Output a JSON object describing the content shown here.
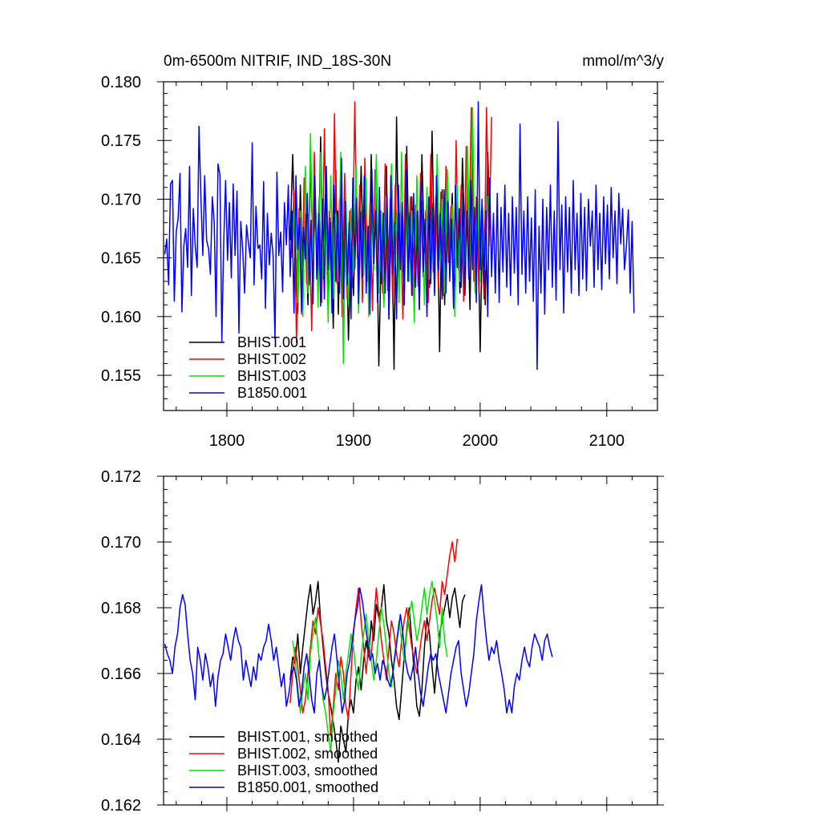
{
  "chart_data": [
    {
      "type": "line",
      "title_left": "0m-6500m NITRIF, IND_18S-30N",
      "title_right": "mmol/m^3/y",
      "xlim": [
        1750,
        2140
      ],
      "ylim": [
        0.152,
        0.18
      ],
      "x_ticks": [
        1800,
        1900,
        2000,
        2100
      ],
      "x_tick_labels": [
        "1800",
        "1900",
        "2000",
        "2100"
      ],
      "y_ticks": [
        0.155,
        0.16,
        0.165,
        0.17,
        0.175,
        0.18
      ],
      "y_tick_labels": [
        "0.155",
        "0.160",
        "0.165",
        "0.170",
        "0.175",
        "0.180"
      ],
      "legend_position": "bottom-left",
      "series": [
        {
          "name": "BHIST.001",
          "color": "#000000",
          "x_start": 1850,
          "x_step": 2,
          "values": [
            0.1665,
            0.1738,
            0.1655,
            0.1603,
            0.1712,
            0.1628,
            0.1687,
            0.161,
            0.1735,
            0.1652,
            0.1698,
            0.1625,
            0.1753,
            0.164,
            0.1715,
            0.1612,
            0.168,
            0.159,
            0.1725,
            0.1602,
            0.1705,
            0.1575,
            0.1692,
            0.158,
            0.1663,
            0.1618,
            0.1702,
            0.1628,
            0.1728,
            0.1641,
            0.1689,
            0.1618,
            0.1738,
            0.1648,
            0.17,
            0.1558,
            0.1666,
            0.1612,
            0.1728,
            0.1598,
            0.1703,
            0.1555,
            0.177,
            0.1632,
            0.1688,
            0.161,
            0.1745,
            0.1642,
            0.1702,
            0.1614,
            0.1688,
            0.1606,
            0.1738,
            0.1655,
            0.17,
            0.1625,
            0.1758,
            0.1647,
            0.171,
            0.157,
            0.1708,
            0.161,
            0.1725,
            0.165,
            0.1705,
            0.1612,
            0.1698,
            0.162,
            0.1735,
            0.166,
            0.1692,
            0.1606,
            0.1745,
            0.1622,
            0.17,
            0.157,
            0.169,
            0.161,
            0.174,
            0.1675
          ]
        },
        {
          "name": "BHIST.002",
          "color": "#ff0000",
          "x_start": 1851,
          "x_step": 2,
          "values": [
            0.165,
            0.1708,
            0.1578,
            0.1692,
            0.1602,
            0.1718,
            0.1628,
            0.1688,
            0.1588,
            0.174,
            0.1645,
            0.1702,
            0.1612,
            0.176,
            0.1636,
            0.169,
            0.162,
            0.1773,
            0.1628,
            0.17,
            0.16,
            0.1722,
            0.1615,
            0.169,
            0.1625,
            0.1783,
            0.165,
            0.1712,
            0.1612,
            0.1735,
            0.163,
            0.1698,
            0.1605,
            0.1725,
            0.164,
            0.169,
            0.162,
            0.173,
            0.1622,
            0.17,
            0.161,
            0.1712,
            0.1635,
            0.1688,
            0.1598,
            0.1738,
            0.165,
            0.1702,
            0.1618,
            0.1695,
            0.1626,
            0.1722,
            0.1634,
            0.169,
            0.1612,
            0.1738,
            0.1638,
            0.1702,
            0.1625,
            0.1706,
            0.1618,
            0.1728,
            0.1646,
            0.1694,
            0.161,
            0.175,
            0.164,
            0.1712,
            0.1613,
            0.1745,
            0.165,
            0.1778,
            0.163,
            0.1702,
            0.162,
            0.169,
            0.1615,
            0.1778,
            0.166,
            0.177
          ]
        },
        {
          "name": "BHIST.003",
          "color": "#00e600",
          "x_start": 1852,
          "x_step": 2,
          "values": [
            0.166,
            0.1705,
            0.1612,
            0.169,
            0.16,
            0.1728,
            0.162,
            0.1756,
            0.1648,
            0.1702,
            0.1608,
            0.174,
            0.1632,
            0.169,
            0.1595,
            0.172,
            0.1615,
            0.1688,
            0.163,
            0.174,
            0.156,
            0.1702,
            0.161,
            0.1692,
            0.164,
            0.1728,
            0.1603,
            0.169,
            0.1635,
            0.1718,
            0.16,
            0.1696,
            0.164,
            0.1738,
            0.162,
            0.169,
            0.1608,
            0.1702,
            0.1626,
            0.173,
            0.1642,
            0.1688,
            0.1612,
            0.174,
            0.1615,
            0.17,
            0.163,
            0.169,
            0.1595,
            0.172,
            0.164,
            0.1698,
            0.161,
            0.171,
            0.1632,
            0.1692,
            0.162,
            0.1738,
            0.1648,
            0.17,
            0.162,
            0.1725,
            0.164,
            0.1695,
            0.16,
            0.1712,
            0.163,
            0.17,
            0.162,
            0.1745,
            0.1655,
            0.1778,
            0.162,
            0.17,
            0.163,
            0.1692,
            0.164,
            0.1703
          ]
        },
        {
          "name": "B1850.001",
          "color": "#0000ff",
          "x_start": 1751,
          "x_step": 1.5,
          "values": [
            0.1653,
            0.1666,
            0.1627,
            0.1713,
            0.1716,
            0.1613,
            0.1672,
            0.1684,
            0.1722,
            0.1604,
            0.166,
            0.1675,
            0.1642,
            0.1728,
            0.1618,
            0.1692,
            0.166,
            0.1642,
            0.1762,
            0.1701,
            0.1652,
            0.172,
            0.1665,
            0.1658,
            0.1636,
            0.1702,
            0.168,
            0.16,
            0.173,
            0.1721,
            0.1579,
            0.1662,
            0.1716,
            0.1648,
            0.1697,
            0.1633,
            0.1713,
            0.1652,
            0.1707,
            0.1586,
            0.1681,
            0.1657,
            0.162,
            0.1678,
            0.1663,
            0.165,
            0.1748,
            0.1627,
            0.1694,
            0.1658,
            0.1661,
            0.1632,
            0.1715,
            0.1607,
            0.1688,
            0.1644,
            0.1671,
            0.1652,
            0.1581,
            0.1723,
            0.1652,
            0.1672,
            0.1621,
            0.1697,
            0.1661,
            0.1712,
            0.1634,
            0.169,
            0.1603,
            0.172,
            0.1657,
            0.1684,
            0.1604,
            0.1676,
            0.1649,
            0.1705,
            0.1627,
            0.1682,
            0.1611,
            0.172,
            0.1632,
            0.1688,
            0.1609,
            0.17,
            0.1615,
            0.1728,
            0.164,
            0.1684,
            0.1603,
            0.1712,
            0.163,
            0.169,
            0.162,
            0.1735,
            0.1615,
            0.1698,
            0.1627,
            0.168,
            0.1598,
            0.1718,
            0.1641,
            0.1701,
            0.1611,
            0.1689,
            0.1633,
            0.172,
            0.162,
            0.1677,
            0.1602,
            0.1725,
            0.1645,
            0.169,
            0.1612,
            0.171,
            0.1628,
            0.1688,
            0.162,
            0.1702,
            0.16,
            0.172,
            0.1636,
            0.168,
            0.1598,
            0.1712,
            0.164,
            0.1697,
            0.161,
            0.1725,
            0.163,
            0.1688,
            0.1618,
            0.1705,
            0.1625,
            0.169,
            0.1608,
            0.1715,
            0.1638,
            0.1683,
            0.16,
            0.1702,
            0.1628,
            0.1696,
            0.1618,
            0.172,
            0.164,
            0.1688,
            0.1615,
            0.1708,
            0.162,
            0.1698,
            0.163,
            0.1683,
            0.1607,
            0.1712,
            0.1642,
            0.1692,
            0.1625,
            0.1705,
            0.1618,
            0.169,
            0.1632,
            0.1716,
            0.164,
            0.1693,
            0.1612,
            0.1783,
            0.164,
            0.17,
            0.1628,
            0.169,
            0.16,
            0.1718,
            0.1634,
            0.1688,
            0.162,
            0.1705,
            0.1612,
            0.1693,
            0.1638,
            0.1712,
            0.1625,
            0.1688,
            0.1618,
            0.1702,
            0.1637,
            0.1693,
            0.161,
            0.1764,
            0.1636,
            0.169,
            0.162,
            0.1702,
            0.163,
            0.1684,
            0.1613,
            0.1708,
            0.1555,
            0.1677,
            0.162,
            0.17,
            0.1602,
            0.1693,
            0.164,
            0.1712,
            0.1625,
            0.169,
            0.1614,
            0.1766,
            0.164,
            0.1695,
            0.1603,
            0.1702,
            0.1638,
            0.1693,
            0.162,
            0.1716,
            0.164,
            0.1688,
            0.1618,
            0.1705,
            0.1632,
            0.1693,
            0.1622,
            0.17,
            0.166,
            0.169,
            0.1625,
            0.1712,
            0.164,
            0.1688,
            0.1623,
            0.1702,
            0.1645,
            0.1695,
            0.1632,
            0.171,
            0.165,
            0.169,
            0.1628,
            0.1705,
            0.1662,
            0.1692,
            0.164,
            0.166,
            0.1691,
            0.162,
            0.1681,
            0.1603
          ]
        }
      ]
    },
    {
      "type": "line",
      "xlim": [
        1750,
        2140
      ],
      "ylim": [
        0.162,
        0.172
      ],
      "x_ticks": [
        1800,
        1900,
        2000,
        2100
      ],
      "y_ticks": [
        0.162,
        0.164,
        0.166,
        0.168,
        0.17,
        0.172
      ],
      "y_tick_labels": [
        "0.162",
        "0.164",
        "0.166",
        "0.168",
        "0.170",
        "0.172"
      ],
      "legend_position": "bottom-left",
      "series": [
        {
          "name": "BHIST.001, smoothed",
          "color": "#000000",
          "x_start": 1850,
          "x_step": 2,
          "values": [
            0.1658,
            0.1665,
            0.1663,
            0.1672,
            0.166,
            0.1668,
            0.1675,
            0.1682,
            0.1687,
            0.1678,
            0.1682,
            0.1688,
            0.1676,
            0.1668,
            0.166,
            0.1654,
            0.165,
            0.1645,
            0.164,
            0.1633,
            0.1644,
            0.164,
            0.1636,
            0.1648,
            0.1652,
            0.1648,
            0.1658,
            0.1662,
            0.1655,
            0.1664,
            0.167,
            0.1665,
            0.1676,
            0.167,
            0.1681,
            0.1677,
            0.168,
            0.1687,
            0.1676,
            0.1672,
            0.1664,
            0.1658,
            0.165,
            0.1646,
            0.1655,
            0.1665,
            0.1673,
            0.168,
            0.167,
            0.166,
            0.165,
            0.1647,
            0.1655,
            0.1668,
            0.1677,
            0.1672,
            0.1662,
            0.1654,
            0.1664,
            0.1672,
            0.1676,
            0.168,
            0.1684,
            0.1677,
            0.1683,
            0.1686,
            0.168,
            0.1674,
            0.1682,
            0.1684
          ]
        },
        {
          "name": "BHIST.002, smoothed",
          "color": "#ff0000",
          "x_start": 1850,
          "x_step": 2,
          "values": [
            0.1651,
            0.166,
            0.1668,
            0.1662,
            0.1655,
            0.1648,
            0.1652,
            0.166,
            0.1668,
            0.1676,
            0.1672,
            0.168,
            0.1675,
            0.167,
            0.1662,
            0.1655,
            0.1641,
            0.165,
            0.166,
            0.1655,
            0.1665,
            0.166,
            0.165,
            0.1646,
            0.166,
            0.1672,
            0.168,
            0.1686,
            0.1676,
            0.1668,
            0.166,
            0.167,
            0.1665,
            0.1676,
            0.1686,
            0.1678,
            0.167,
            0.1664,
            0.1658,
            0.1668,
            0.1676,
            0.1672,
            0.1666,
            0.1662,
            0.167,
            0.1676,
            0.168,
            0.1674,
            0.1668,
            0.1664,
            0.166,
            0.1666,
            0.1672,
            0.1676,
            0.167,
            0.1676,
            0.1682,
            0.1686,
            0.1682,
            0.1678,
            0.1688,
            0.1684,
            0.169,
            0.1696,
            0.17,
            0.1694,
            0.1701
          ]
        },
        {
          "name": "BHIST.003, smoothed",
          "color": "#00e600",
          "x_start": 1852,
          "x_step": 2,
          "values": [
            0.167,
            0.1664,
            0.1656,
            0.1648,
            0.1655,
            0.166,
            0.1652,
            0.1666,
            0.1672,
            0.1677,
            0.1668,
            0.166,
            0.1652,
            0.1648,
            0.1642,
            0.1636,
            0.1648,
            0.1655,
            0.1664,
            0.166,
            0.1652,
            0.166,
            0.1666,
            0.1672,
            0.1668,
            0.166,
            0.1655,
            0.1665,
            0.1672,
            0.1678,
            0.167,
            0.1664,
            0.1658,
            0.1664,
            0.1672,
            0.168,
            0.1675,
            0.1668,
            0.166,
            0.1656,
            0.1664,
            0.167,
            0.1676,
            0.167,
            0.1664,
            0.1672,
            0.1678,
            0.1682,
            0.1676,
            0.167,
            0.1674,
            0.168,
            0.1686,
            0.1678,
            0.1684,
            0.1688,
            0.1682,
            0.1676,
            0.1668,
            0.168,
            0.167,
            0.1665
          ]
        },
        {
          "name": "B1850.001, smoothed",
          "color": "#0000ff",
          "x_start": 1751,
          "x_step": 2,
          "values": [
            0.1669,
            0.1666,
            0.1664,
            0.166,
            0.1668,
            0.1672,
            0.168,
            0.1684,
            0.1681,
            0.1672,
            0.1664,
            0.166,
            0.1652,
            0.1668,
            0.1664,
            0.1658,
            0.1666,
            0.1662,
            0.1656,
            0.166,
            0.165,
            0.1659,
            0.1664,
            0.1666,
            0.1672,
            0.1668,
            0.1664,
            0.167,
            0.1674,
            0.167,
            0.1668,
            0.1658,
            0.1664,
            0.166,
            0.1656,
            0.1662,
            0.1658,
            0.1666,
            0.1664,
            0.1668,
            0.167,
            0.1675,
            0.167,
            0.1664,
            0.1668,
            0.1662,
            0.1656,
            0.166,
            0.165,
            0.1654,
            0.166,
            0.1662,
            0.1658,
            0.165,
            0.1654,
            0.1662,
            0.1666,
            0.166,
            0.1652,
            0.1648,
            0.166,
            0.1664,
            0.1656,
            0.1652,
            0.1656,
            0.1662,
            0.1668,
            0.1672,
            0.1664,
            0.1656,
            0.1648,
            0.1652,
            0.166,
            0.1664,
            0.167,
            0.1676,
            0.168,
            0.1686,
            0.1682,
            0.1676,
            0.167,
            0.1664,
            0.1666,
            0.166,
            0.1663,
            0.1658,
            0.1664,
            0.1662,
            0.1658,
            0.1656,
            0.166,
            0.1666,
            0.1672,
            0.1678,
            0.1672,
            0.1664,
            0.166,
            0.1658,
            0.1662,
            0.1668,
            0.166,
            0.1654,
            0.165,
            0.1656,
            0.1662,
            0.1666,
            0.1664,
            0.1666,
            0.166,
            0.1656,
            0.1652,
            0.1648,
            0.1654,
            0.166,
            0.1664,
            0.1668,
            0.167,
            0.166,
            0.1655,
            0.165,
            0.1654,
            0.166,
            0.1666,
            0.1676,
            0.1682,
            0.1687,
            0.1678,
            0.167,
            0.1664,
            0.1668,
            0.1666,
            0.167,
            0.1664,
            0.166,
            0.1655,
            0.1648,
            0.1652,
            0.1648,
            0.1656,
            0.166,
            0.1658,
            0.1664,
            0.1668,
            0.1664,
            0.1662,
            0.1668,
            0.1672,
            0.167,
            0.1668,
            0.1664,
            0.167,
            0.1672,
            0.1668,
            0.1665
          ]
        }
      ]
    }
  ]
}
